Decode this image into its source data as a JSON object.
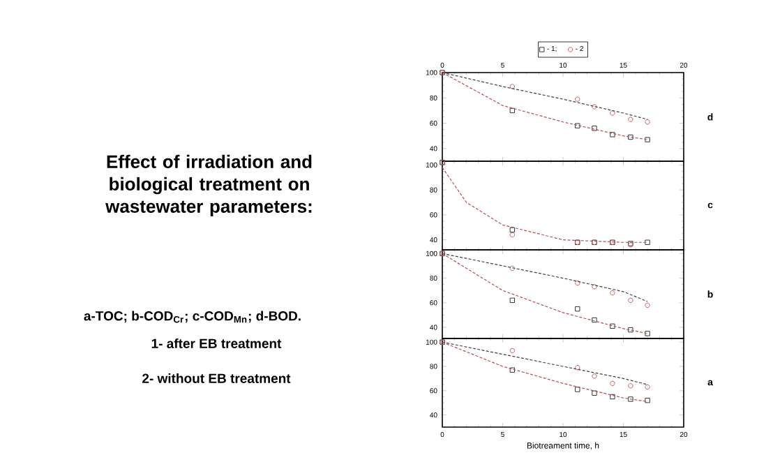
{
  "chart_data": [
    {
      "type": "other",
      "title": "Effect of irradiation and biological treatment on wastewater parameters:",
      "annotations": [
        "a-TOC; b-COD$_{Cr}$; c-COD$_{Mn}$; d-BOD.",
        "1- after EB treatment",
        "2- without EB treatment"
      ]
    },
    {
      "type": "scatter",
      "xlim": [
        0,
        20
      ],
      "x2lim": [
        0,
        20
      ],
      "x2ticks": [
        0,
        5,
        10,
        15,
        20
      ],
      "ylim": [
        30,
        100
      ],
      "yticks": [
        40,
        60,
        80,
        100
      ],
      "legend": "top",
      "annotations": [
        "d"
      ],
      "series": [
        {
          "name": "- 1;",
          "type": "scatter",
          "marker": "square",
          "color": "#333333",
          "x": [
            0,
            5.8,
            11.2,
            12.6,
            14.1,
            15.6,
            17
          ],
          "values": [
            100,
            70,
            58,
            56,
            51,
            49,
            47
          ]
        },
        {
          "name": "- 2",
          "type": "scatter",
          "marker": "circle",
          "color": "#c06060",
          "x": [
            0,
            5.8,
            11.2,
            12.6,
            14.1,
            15.6,
            17
          ],
          "values": [
            100,
            89,
            79,
            73,
            68,
            63,
            61
          ]
        },
        {
          "type": "line",
          "line_style": "dashed",
          "color": "#404040",
          "x": [
            0,
            5,
            10,
            15,
            17
          ],
          "values": [
            100,
            89,
            79,
            68,
            63
          ]
        },
        {
          "type": "line",
          "line_style": "dashed",
          "color": "#b05050",
          "x": [
            0,
            5,
            10,
            15,
            17
          ],
          "values": [
            100,
            74,
            61,
            50,
            47
          ]
        }
      ]
    },
    {
      "type": "scatter",
      "xlim": [
        0,
        20
      ],
      "tick_labels": "y",
      "ylim": [
        32,
        103
      ],
      "yticks": [
        40,
        60,
        80,
        100
      ],
      "annotations": [
        "c"
      ],
      "series": [
        {
          "type": "scatter",
          "marker": "square",
          "color": "#333333",
          "x": [
            0,
            5.8,
            11.2,
            12.6,
            14.1,
            15.6,
            17
          ],
          "values": [
            102,
            48,
            38,
            38,
            38,
            37,
            38
          ]
        },
        {
          "type": "scatter",
          "marker": "circle",
          "color": "#c06060",
          "x": [
            0,
            5.8,
            11.2,
            12.6,
            14.1,
            15.6
          ],
          "values": [
            102,
            44,
            38,
            38,
            38,
            36
          ]
        },
        {
          "type": "line",
          "line_style": "dashed",
          "color": "#b05050",
          "x": [
            0,
            2,
            5,
            10,
            15,
            17
          ],
          "values": [
            98,
            70,
            52,
            40,
            38,
            38
          ]
        }
      ]
    },
    {
      "type": "scatter",
      "xlim": [
        0,
        20
      ],
      "tick_labels": "y",
      "ylim": [
        31,
        103
      ],
      "yticks": [
        40,
        60,
        80,
        100
      ],
      "annotations": [
        "b"
      ],
      "series": [
        {
          "type": "scatter",
          "marker": "square",
          "color": "#333333",
          "x": [
            0,
            5.8,
            11.2,
            12.6,
            14.1,
            15.6,
            17
          ],
          "values": [
            100,
            62,
            55,
            46,
            41,
            38,
            35
          ]
        },
        {
          "type": "scatter",
          "marker": "circle",
          "color": "#c06060",
          "x": [
            0,
            5.8,
            11.2,
            12.6,
            14.1,
            15.6,
            17
          ],
          "values": [
            100,
            88,
            76,
            73,
            68,
            62,
            58
          ]
        },
        {
          "type": "line",
          "line_style": "dashed",
          "color": "#404040",
          "x": [
            0,
            5,
            10,
            15,
            17
          ],
          "values": [
            100,
            90,
            80,
            69,
            61
          ]
        },
        {
          "type": "line",
          "line_style": "dashed",
          "color": "#b05050",
          "x": [
            0,
            5,
            10,
            15,
            17
          ],
          "values": [
            100,
            70,
            52,
            39,
            35
          ]
        }
      ]
    },
    {
      "type": "scatter",
      "xlim": [
        0,
        20
      ],
      "xticks": [
        0,
        5,
        10,
        15,
        20
      ],
      "ylim": [
        30,
        103
      ],
      "yticks": [
        40,
        60,
        80,
        100
      ],
      "xlabel": "Biotreament time,  h",
      "annotations": [
        "a"
      ],
      "series": [
        {
          "type": "scatter",
          "marker": "square",
          "color": "#333333",
          "x": [
            0,
            5.8,
            11.2,
            12.6,
            14.1,
            15.6,
            17
          ],
          "values": [
            100,
            77,
            61,
            58,
            55,
            53,
            52
          ]
        },
        {
          "type": "scatter",
          "marker": "circle",
          "color": "#c06060",
          "x": [
            0,
            5.8,
            11.2,
            12.6,
            14.1,
            15.6,
            17
          ],
          "values": [
            100,
            93,
            79,
            72,
            66,
            64,
            63
          ]
        },
        {
          "type": "line",
          "line_style": "dashed",
          "color": "#404040",
          "x": [
            0,
            5,
            10,
            15,
            17
          ],
          "values": [
            100,
            90,
            80,
            70,
            65
          ]
        },
        {
          "type": "line",
          "line_style": "dashed",
          "color": "#b05050",
          "x": [
            0,
            5,
            10,
            15,
            17
          ],
          "values": [
            100,
            80,
            66,
            54,
            51
          ]
        }
      ]
    }
  ]
}
